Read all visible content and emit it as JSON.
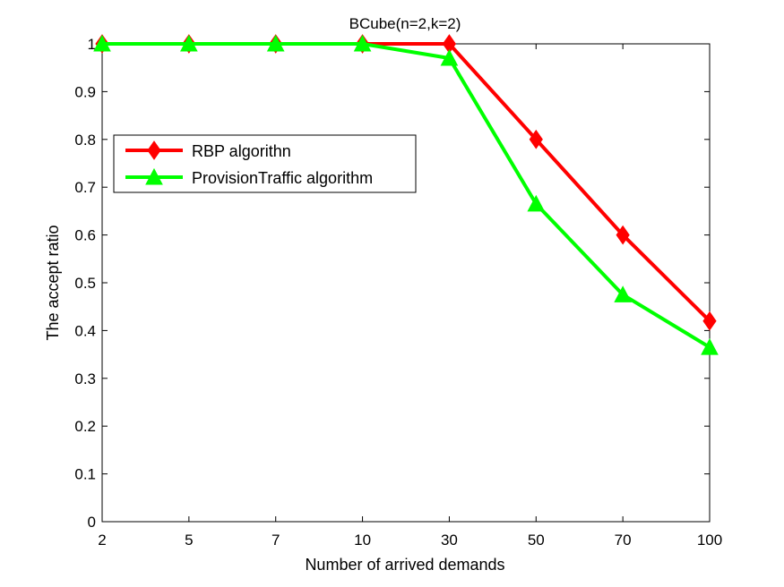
{
  "chart_data": {
    "type": "line",
    "title": "BCube(n=2,k=2)",
    "xlabel": "Number of arrived demands",
    "ylabel": "The accept ratio",
    "categories": [
      "2",
      "5",
      "7",
      "10",
      "30",
      "50",
      "70",
      "100"
    ],
    "ylim": [
      0,
      1
    ],
    "yticks": [
      "0",
      "0.1",
      "0.2",
      "0.3",
      "0.4",
      "0.5",
      "0.6",
      "0.7",
      "0.8",
      "0.9",
      "1"
    ],
    "grid": false,
    "legend_position": "upper-left",
    "series": [
      {
        "name": "RBP algorithn",
        "color": "#ff0000",
        "marker": "diamond",
        "values": [
          1,
          1,
          1,
          1,
          1,
          0.8,
          0.6,
          0.42
        ]
      },
      {
        "name": "ProvisionTraffic algorithm",
        "color": "#00ff00",
        "marker": "triangle",
        "values": [
          1,
          1,
          1,
          1,
          0.97,
          0.665,
          0.475,
          0.365
        ]
      }
    ]
  }
}
